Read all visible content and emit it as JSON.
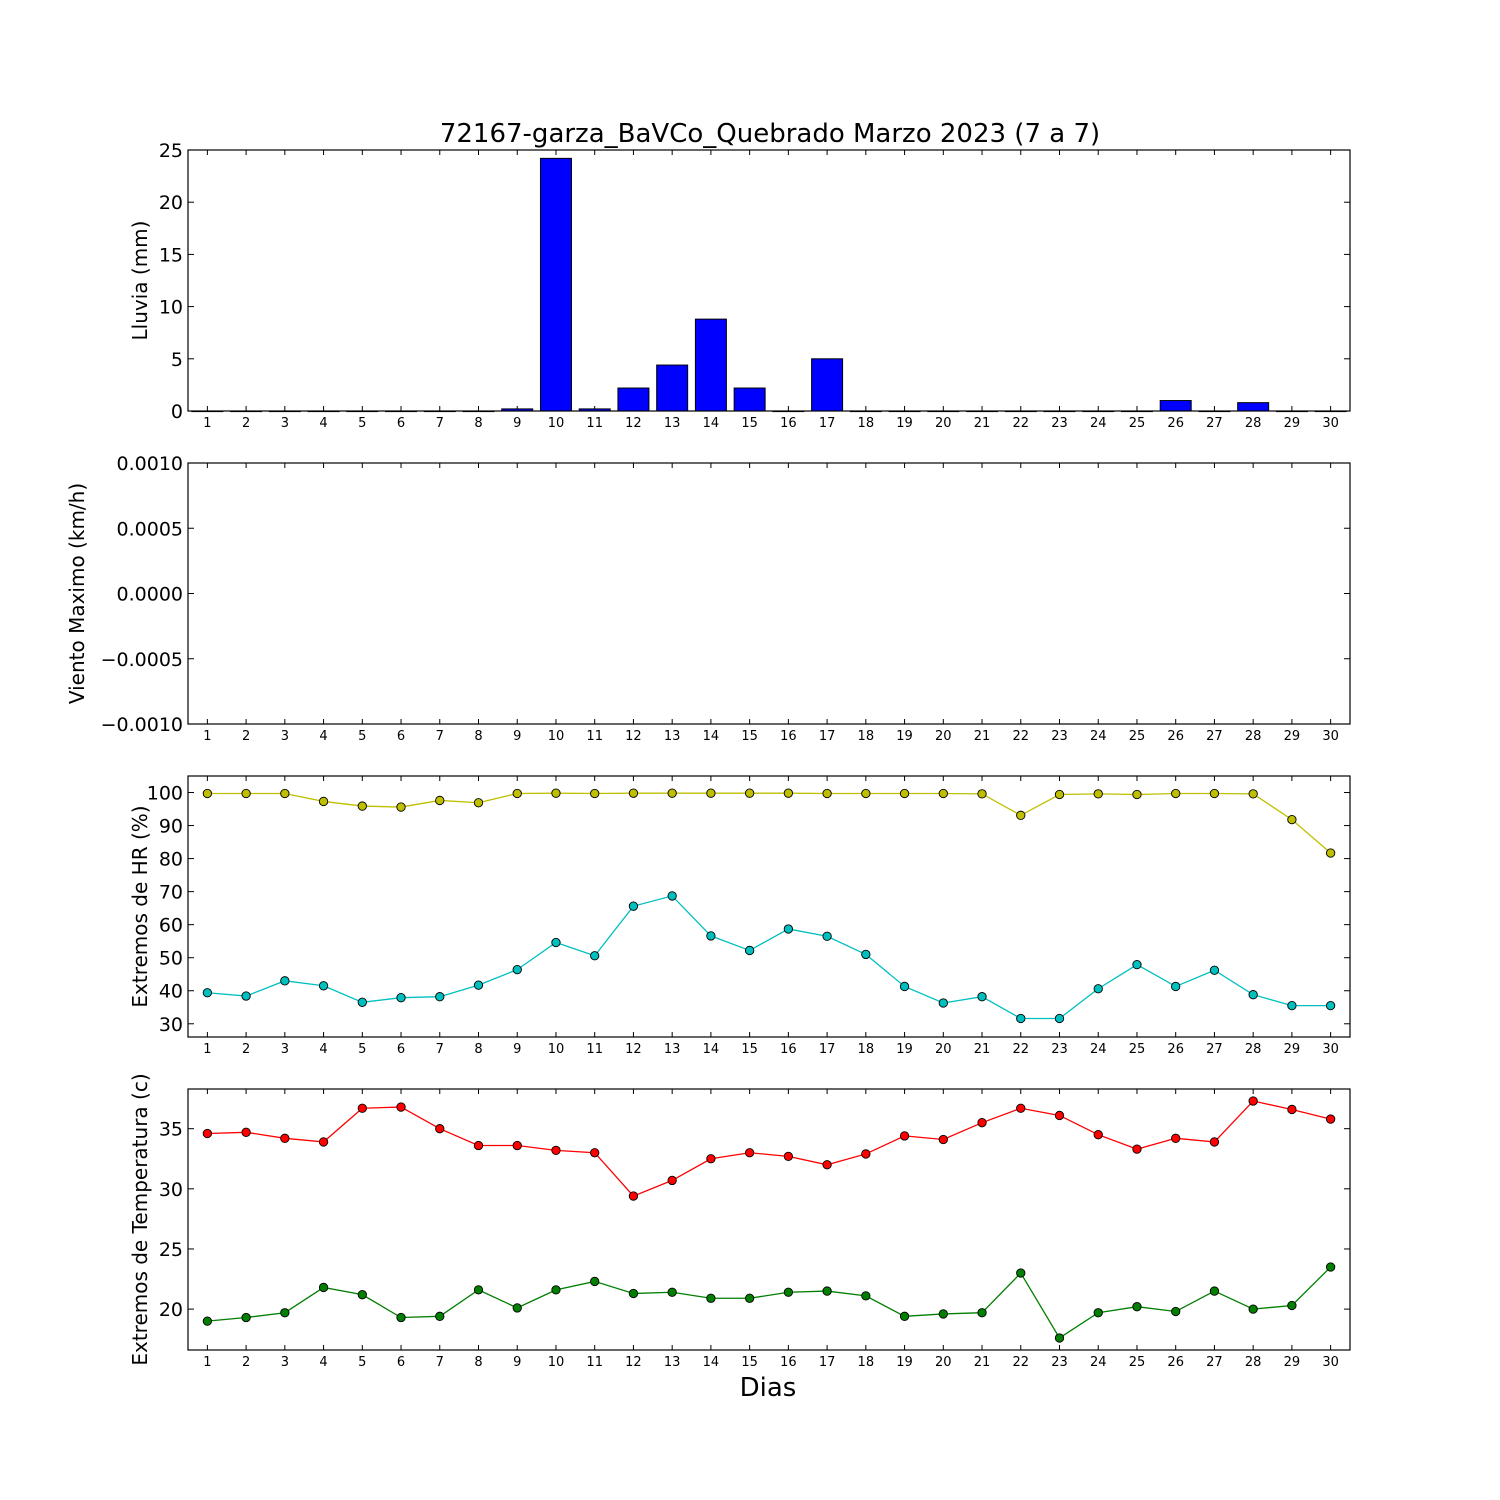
{
  "figure": {
    "title": "72167-garza_BaVCo_Quebrado Marzo 2023  (7 a 7)",
    "xlabel": "Dias"
  },
  "chart_data": [
    {
      "type": "bar",
      "ylabel": "Lluvia (mm)",
      "ylim": [
        0,
        25
      ],
      "yticks": [
        "0",
        "5",
        "10",
        "15",
        "20",
        "25"
      ],
      "yticks_values": [
        0,
        5,
        10,
        15,
        20,
        25
      ],
      "categories": [
        1,
        2,
        3,
        4,
        5,
        6,
        7,
        8,
        9,
        10,
        11,
        12,
        13,
        14,
        15,
        16,
        17,
        18,
        19,
        20,
        21,
        22,
        23,
        24,
        25,
        26,
        27,
        28,
        29,
        30
      ],
      "series": [
        {
          "color": "#0000ff",
          "values": [
            0,
            0,
            0,
            0,
            0,
            0,
            0,
            0,
            0.2,
            24.2,
            0.2,
            2.2,
            4.4,
            8.8,
            2.2,
            0,
            5.0,
            0,
            0,
            0,
            0,
            0,
            0,
            0,
            0,
            1.0,
            0,
            0.8,
            0,
            0
          ]
        }
      ]
    },
    {
      "type": "line",
      "ylabel": "Viento Maximo (km/h)",
      "ylim": [
        -0.001,
        0.001
      ],
      "yticks": [
        "−0.0010",
        "−0.0005",
        "0.0000",
        "0.0005",
        "0.0010"
      ],
      "yticks_values": [
        -0.001,
        -0.0005,
        0,
        0.0005,
        0.001
      ],
      "categories": [
        1,
        2,
        3,
        4,
        5,
        6,
        7,
        8,
        9,
        10,
        11,
        12,
        13,
        14,
        15,
        16,
        17,
        18,
        19,
        20,
        21,
        22,
        23,
        24,
        25,
        26,
        27,
        28,
        29,
        30
      ],
      "series": []
    },
    {
      "type": "line",
      "ylabel": "Extremos de HR (%)",
      "ylim": [
        26,
        105
      ],
      "yticks": [
        "30",
        "40",
        "50",
        "60",
        "70",
        "80",
        "90",
        "100"
      ],
      "yticks_values": [
        30,
        40,
        50,
        60,
        70,
        80,
        90,
        100
      ],
      "categories": [
        1,
        2,
        3,
        4,
        5,
        6,
        7,
        8,
        9,
        10,
        11,
        12,
        13,
        14,
        15,
        16,
        17,
        18,
        19,
        20,
        21,
        22,
        23,
        24,
        25,
        26,
        27,
        28,
        29,
        30
      ],
      "series": [
        {
          "color": "#bfbf00",
          "values": [
            99.7,
            99.7,
            99.7,
            97.3,
            95.9,
            95.6,
            97.6,
            96.9,
            99.7,
            99.8,
            99.7,
            99.8,
            99.8,
            99.8,
            99.8,
            99.8,
            99.7,
            99.7,
            99.7,
            99.7,
            99.6,
            93.1,
            99.4,
            99.6,
            99.4,
            99.7,
            99.7,
            99.6,
            91.8,
            81.7
          ]
        },
        {
          "color": "#00bfbf",
          "values": [
            39.4,
            38.4,
            43.0,
            41.5,
            36.5,
            37.9,
            38.2,
            41.7,
            46.4,
            54.6,
            50.6,
            65.6,
            68.7,
            56.6,
            52.2,
            58.7,
            56.5,
            51.0,
            41.3,
            36.3,
            38.2,
            31.6,
            31.6,
            40.6,
            47.9,
            41.3,
            46.2,
            38.8,
            35.5,
            35.5
          ]
        }
      ]
    },
    {
      "type": "line",
      "ylabel": "Extremos de Temperatura (c)",
      "ylim": [
        16.6,
        38.3
      ],
      "yticks": [
        "20",
        "25",
        "30",
        "35"
      ],
      "yticks_values": [
        20,
        25,
        30,
        35
      ],
      "categories": [
        1,
        2,
        3,
        4,
        5,
        6,
        7,
        8,
        9,
        10,
        11,
        12,
        13,
        14,
        15,
        16,
        17,
        18,
        19,
        20,
        21,
        22,
        23,
        24,
        25,
        26,
        27,
        28,
        29,
        30
      ],
      "series": [
        {
          "color": "#ff0000",
          "values": [
            34.6,
            34.7,
            34.2,
            33.9,
            36.7,
            36.8,
            35.0,
            33.6,
            33.6,
            33.2,
            33.0,
            29.4,
            30.7,
            32.5,
            33.0,
            32.7,
            32.0,
            32.9,
            34.4,
            34.1,
            35.5,
            36.7,
            36.1,
            34.5,
            33.3,
            34.2,
            33.9,
            37.3,
            36.6,
            35.8
          ]
        },
        {
          "color": "#007f00",
          "values": [
            19.0,
            19.3,
            19.7,
            21.8,
            21.2,
            19.3,
            19.4,
            21.6,
            20.1,
            21.6,
            22.3,
            21.3,
            21.4,
            20.9,
            20.9,
            21.4,
            21.5,
            21.1,
            19.4,
            19.6,
            19.7,
            23.0,
            17.6,
            19.7,
            20.2,
            19.8,
            21.5,
            20.0,
            20.3,
            23.5
          ]
        }
      ]
    }
  ]
}
